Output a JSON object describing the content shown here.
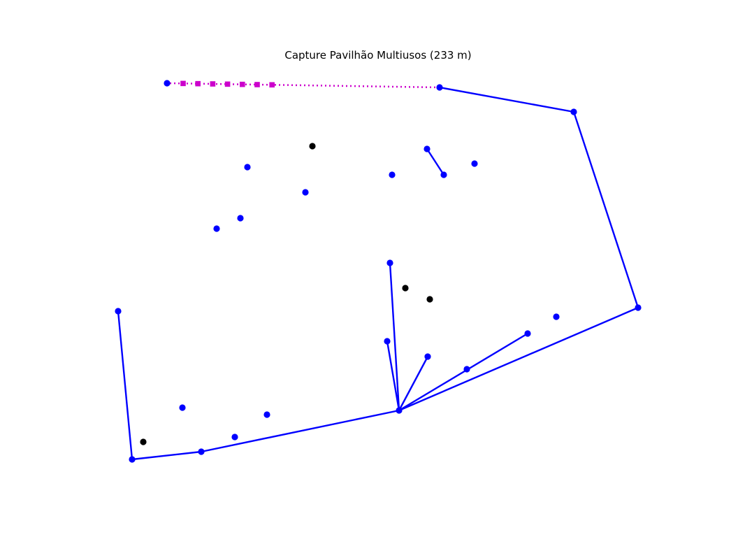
{
  "title": "Capture Pavilhão Multiusos (233 m)",
  "colors": {
    "network": "#0000ff",
    "capture": "#cc00cc",
    "unserved": "#000000",
    "background": "#ffffff"
  },
  "nodes": [
    {
      "id": "n1",
      "role": "network"
    },
    {
      "id": "n2",
      "role": "network"
    },
    {
      "id": "n3",
      "role": "network"
    },
    {
      "id": "n4",
      "role": "network"
    },
    {
      "id": "n5",
      "role": "network"
    },
    {
      "id": "n6",
      "role": "network"
    },
    {
      "id": "n7",
      "role": "network"
    },
    {
      "id": "n8",
      "role": "network"
    },
    {
      "id": "n9",
      "role": "network"
    },
    {
      "id": "n10",
      "role": "network"
    },
    {
      "id": "n11",
      "role": "network"
    },
    {
      "id": "n12",
      "role": "network"
    },
    {
      "id": "n13",
      "role": "network"
    },
    {
      "id": "n14",
      "role": "network"
    },
    {
      "id": "n15",
      "role": "network"
    },
    {
      "id": "n16",
      "role": "network"
    },
    {
      "id": "n17",
      "role": "network"
    },
    {
      "id": "n18",
      "role": "network"
    },
    {
      "id": "n19",
      "role": "network"
    },
    {
      "id": "n20",
      "role": "network"
    },
    {
      "id": "n21",
      "role": "network"
    },
    {
      "id": "n22",
      "role": "network"
    },
    {
      "id": "n23",
      "role": "network"
    },
    {
      "id": "n24",
      "role": "network"
    },
    {
      "id": "n25",
      "role": "network"
    },
    {
      "id": "n26",
      "role": "network"
    },
    {
      "id": "u1",
      "role": "unserved"
    },
    {
      "id": "u2",
      "role": "unserved"
    },
    {
      "id": "u3",
      "role": "unserved"
    },
    {
      "id": "u4",
      "role": "unserved"
    }
  ],
  "edges": [
    [
      "n1",
      "n2"
    ],
    [
      "n2",
      "n3"
    ],
    [
      "n3",
      "n4"
    ],
    [
      "n4",
      "n5"
    ],
    [
      "n5",
      "n6"
    ],
    [
      "n6",
      "n7"
    ],
    [
      "n7",
      "n8"
    ],
    [
      "n8",
      "n9"
    ],
    [
      "n5",
      "n10"
    ],
    [
      "n5",
      "n11"
    ],
    [
      "n5",
      "n12"
    ],
    [
      "n5",
      "n13"
    ],
    [
      "n14",
      "n15"
    ]
  ],
  "capture_line": {
    "from": "n9",
    "to": "n26",
    "marker_count": 7
  }
}
